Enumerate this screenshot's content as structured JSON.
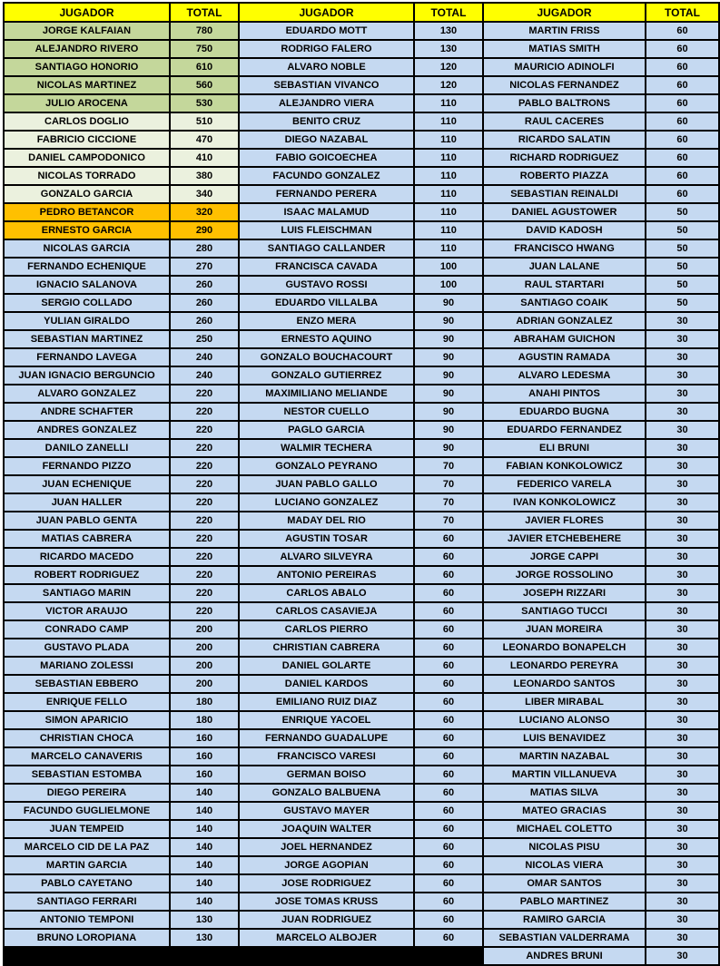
{
  "colors": {
    "header_bg": "#FFFF00",
    "tier_green": "#C4D79B",
    "tier_pale": "#EBF1DE",
    "tier_orange": "#FFC000",
    "tier_blue": "#C5D9F1",
    "tier_black": "#000000",
    "border": "#000000",
    "text": "#000000"
  },
  "table": {
    "header": {
      "jugador": "JUGADOR",
      "total": "TOTAL"
    },
    "columns": [
      {
        "players": [
          {
            "name": "JORGE KALFAIAN",
            "total": "780",
            "tier": "green"
          },
          {
            "name": "ALEJANDRO RIVERO",
            "total": "750",
            "tier": "green"
          },
          {
            "name": "SANTIAGO HONORIO",
            "total": "610",
            "tier": "green"
          },
          {
            "name": "NICOLAS MARTINEZ",
            "total": "560",
            "tier": "green"
          },
          {
            "name": "JULIO AROCENA",
            "total": "530",
            "tier": "green"
          },
          {
            "name": "CARLOS DOGLIO",
            "total": "510",
            "tier": "pale"
          },
          {
            "name": "FABRICIO CICCIONE",
            "total": "470",
            "tier": "pale"
          },
          {
            "name": "DANIEL CAMPODONICO",
            "total": "410",
            "tier": "pale"
          },
          {
            "name": "NICOLAS TORRADO",
            "total": "380",
            "tier": "pale"
          },
          {
            "name": "GONZALO GARCIA",
            "total": "340",
            "tier": "pale"
          },
          {
            "name": "PEDRO BETANCOR",
            "total": "320",
            "tier": "orange"
          },
          {
            "name": "ERNESTO GARCIA",
            "total": "290",
            "tier": "orange"
          },
          {
            "name": "NICOLAS GARCIA",
            "total": "280",
            "tier": "blue"
          },
          {
            "name": "FERNANDO ECHENIQUE",
            "total": "270",
            "tier": "blue"
          },
          {
            "name": "IGNACIO SALANOVA",
            "total": "260",
            "tier": "blue"
          },
          {
            "name": "SERGIO COLLADO",
            "total": "260",
            "tier": "blue"
          },
          {
            "name": "YULIAN GIRALDO",
            "total": "260",
            "tier": "blue"
          },
          {
            "name": "SEBASTIAN MARTINEZ",
            "total": "250",
            "tier": "blue"
          },
          {
            "name": "FERNANDO LAVEGA",
            "total": "240",
            "tier": "blue"
          },
          {
            "name": "JUAN IGNACIO BERGUNCIO",
            "total": "240",
            "tier": "blue"
          },
          {
            "name": "ALVARO GONZALEZ",
            "total": "220",
            "tier": "blue"
          },
          {
            "name": "ANDRE SCHAFTER",
            "total": "220",
            "tier": "blue"
          },
          {
            "name": "ANDRES GONZALEZ",
            "total": "220",
            "tier": "blue"
          },
          {
            "name": "DANILO ZANELLI",
            "total": "220",
            "tier": "blue"
          },
          {
            "name": "FERNANDO PIZZO",
            "total": "220",
            "tier": "blue"
          },
          {
            "name": "JUAN ECHENIQUE",
            "total": "220",
            "tier": "blue"
          },
          {
            "name": "JUAN HALLER",
            "total": "220",
            "tier": "blue"
          },
          {
            "name": "JUAN PABLO GENTA",
            "total": "220",
            "tier": "blue"
          },
          {
            "name": "MATIAS CABRERA",
            "total": "220",
            "tier": "blue"
          },
          {
            "name": "RICARDO MACEDO",
            "total": "220",
            "tier": "blue"
          },
          {
            "name": "ROBERT RODRIGUEZ",
            "total": "220",
            "tier": "blue"
          },
          {
            "name": "SANTIAGO MARIN",
            "total": "220",
            "tier": "blue"
          },
          {
            "name": "VICTOR ARAUJO",
            "total": "220",
            "tier": "blue"
          },
          {
            "name": "CONRADO CAMP",
            "total": "200",
            "tier": "blue"
          },
          {
            "name": "GUSTAVO PLADA",
            "total": "200",
            "tier": "blue"
          },
          {
            "name": "MARIANO ZOLESSI",
            "total": "200",
            "tier": "blue"
          },
          {
            "name": "SEBASTIAN EBBERO",
            "total": "200",
            "tier": "blue"
          },
          {
            "name": "ENRIQUE FELLO",
            "total": "180",
            "tier": "blue"
          },
          {
            "name": "SIMON APARICIO",
            "total": "180",
            "tier": "blue"
          },
          {
            "name": "CHRISTIAN CHOCA",
            "total": "160",
            "tier": "blue"
          },
          {
            "name": "MARCELO CANAVERIS",
            "total": "160",
            "tier": "blue"
          },
          {
            "name": "SEBASTIAN ESTOMBA",
            "total": "160",
            "tier": "blue"
          },
          {
            "name": "DIEGO PEREIRA",
            "total": "140",
            "tier": "blue"
          },
          {
            "name": "FACUNDO GUGLIELMONE",
            "total": "140",
            "tier": "blue"
          },
          {
            "name": "JUAN TEMPEID",
            "total": "140",
            "tier": "blue"
          },
          {
            "name": "MARCELO CID DE LA PAZ",
            "total": "140",
            "tier": "blue"
          },
          {
            "name": "MARTIN GARCIA",
            "total": "140",
            "tier": "blue"
          },
          {
            "name": "PABLO CAYETANO",
            "total": "140",
            "tier": "blue"
          },
          {
            "name": "SANTIAGO FERRARI",
            "total": "140",
            "tier": "blue"
          },
          {
            "name": "ANTONIO TEMPONI",
            "total": "130",
            "tier": "blue"
          },
          {
            "name": "BRUNO LOROPIANA",
            "total": "130",
            "tier": "blue"
          },
          {
            "name": "",
            "total": "",
            "tier": "black"
          }
        ]
      },
      {
        "players": [
          {
            "name": "EDUARDO MOTT",
            "total": "130",
            "tier": "blue"
          },
          {
            "name": "RODRIGO FALERO",
            "total": "130",
            "tier": "blue"
          },
          {
            "name": "ALVARO NOBLE",
            "total": "120",
            "tier": "blue"
          },
          {
            "name": "SEBASTIAN VIVANCO",
            "total": "120",
            "tier": "blue"
          },
          {
            "name": "ALEJANDRO VIERA",
            "total": "110",
            "tier": "blue"
          },
          {
            "name": "BENITO CRUZ",
            "total": "110",
            "tier": "blue"
          },
          {
            "name": "DIEGO NAZABAL",
            "total": "110",
            "tier": "blue"
          },
          {
            "name": "FABIO GOICOECHEA",
            "total": "110",
            "tier": "blue"
          },
          {
            "name": "FACUNDO GONZALEZ",
            "total": "110",
            "tier": "blue"
          },
          {
            "name": "FERNANDO PERERA",
            "total": "110",
            "tier": "blue"
          },
          {
            "name": "ISAAC MALAMUD",
            "total": "110",
            "tier": "blue"
          },
          {
            "name": "LUIS FLEISCHMAN",
            "total": "110",
            "tier": "blue"
          },
          {
            "name": "SANTIAGO CALLANDER",
            "total": "110",
            "tier": "blue"
          },
          {
            "name": "FRANCISCA CAVADA",
            "total": "100",
            "tier": "blue"
          },
          {
            "name": "GUSTAVO ROSSI",
            "total": "100",
            "tier": "blue"
          },
          {
            "name": "EDUARDO VILLALBA",
            "total": "90",
            "tier": "blue"
          },
          {
            "name": "ENZO MERA",
            "total": "90",
            "tier": "blue"
          },
          {
            "name": "ERNESTO AQUINO",
            "total": "90",
            "tier": "blue"
          },
          {
            "name": "GONZALO BOUCHACOURT",
            "total": "90",
            "tier": "blue"
          },
          {
            "name": "GONZALO GUTIERREZ",
            "total": "90",
            "tier": "blue"
          },
          {
            "name": "MAXIMILIANO MELIANDE",
            "total": "90",
            "tier": "blue"
          },
          {
            "name": "NESTOR CUELLO",
            "total": "90",
            "tier": "blue"
          },
          {
            "name": "PAGLO GARCIA",
            "total": "90",
            "tier": "blue"
          },
          {
            "name": "WALMIR TECHERA",
            "total": "90",
            "tier": "blue"
          },
          {
            "name": "GONZALO PEYRANO",
            "total": "70",
            "tier": "blue"
          },
          {
            "name": "JUAN PABLO GALLO",
            "total": "70",
            "tier": "blue"
          },
          {
            "name": "LUCIANO GONZALEZ",
            "total": "70",
            "tier": "blue"
          },
          {
            "name": "MADAY DEL RIO",
            "total": "70",
            "tier": "blue"
          },
          {
            "name": "AGUSTIN TOSAR",
            "total": "60",
            "tier": "blue"
          },
          {
            "name": "ALVARO SILVEYRA",
            "total": "60",
            "tier": "blue"
          },
          {
            "name": "ANTONIO PEREIRAS",
            "total": "60",
            "tier": "blue"
          },
          {
            "name": "CARLOS ABALO",
            "total": "60",
            "tier": "blue"
          },
          {
            "name": "CARLOS CASAVIEJA",
            "total": "60",
            "tier": "blue"
          },
          {
            "name": "CARLOS PIERRO",
            "total": "60",
            "tier": "blue"
          },
          {
            "name": "CHRISTIAN CABRERA",
            "total": "60",
            "tier": "blue"
          },
          {
            "name": "DANIEL GOLARTE",
            "total": "60",
            "tier": "blue"
          },
          {
            "name": "DANIEL KARDOS",
            "total": "60",
            "tier": "blue"
          },
          {
            "name": "EMILIANO RUIZ DIAZ",
            "total": "60",
            "tier": "blue"
          },
          {
            "name": "ENRIQUE YACOEL",
            "total": "60",
            "tier": "blue"
          },
          {
            "name": "FERNANDO GUADALUPE",
            "total": "60",
            "tier": "blue"
          },
          {
            "name": "FRANCISCO VARESI",
            "total": "60",
            "tier": "blue"
          },
          {
            "name": "GERMAN BOISO",
            "total": "60",
            "tier": "blue"
          },
          {
            "name": "GONZALO BALBUENA",
            "total": "60",
            "tier": "blue"
          },
          {
            "name": "GUSTAVO MAYER",
            "total": "60",
            "tier": "blue"
          },
          {
            "name": "JOAQUIN WALTER",
            "total": "60",
            "tier": "blue"
          },
          {
            "name": "JOEL HERNANDEZ",
            "total": "60",
            "tier": "blue"
          },
          {
            "name": "JORGE AGOPIAN",
            "total": "60",
            "tier": "blue"
          },
          {
            "name": "JOSE RODRIGUEZ",
            "total": "60",
            "tier": "blue"
          },
          {
            "name": "JOSE TOMAS KRUSS",
            "total": "60",
            "tier": "blue"
          },
          {
            "name": "JUAN RODRIGUEZ",
            "total": "60",
            "tier": "blue"
          },
          {
            "name": "MARCELO ALBOJER",
            "total": "60",
            "tier": "blue"
          },
          {
            "name": "",
            "total": "",
            "tier": "black"
          }
        ]
      },
      {
        "players": [
          {
            "name": "MARTIN FRISS",
            "total": "60",
            "tier": "blue"
          },
          {
            "name": "MATIAS SMITH",
            "total": "60",
            "tier": "blue"
          },
          {
            "name": "MAURICIO ADINOLFI",
            "total": "60",
            "tier": "blue"
          },
          {
            "name": "NICOLAS FERNANDEZ",
            "total": "60",
            "tier": "blue"
          },
          {
            "name": "PABLO BALTRONS",
            "total": "60",
            "tier": "blue"
          },
          {
            "name": "RAUL CACERES",
            "total": "60",
            "tier": "blue"
          },
          {
            "name": "RICARDO SALATIN",
            "total": "60",
            "tier": "blue"
          },
          {
            "name": "RICHARD RODRIGUEZ",
            "total": "60",
            "tier": "blue"
          },
          {
            "name": "ROBERTO PIAZZA",
            "total": "60",
            "tier": "blue"
          },
          {
            "name": "SEBASTIAN REINALDI",
            "total": "60",
            "tier": "blue"
          },
          {
            "name": "DANIEL AGUSTOWER",
            "total": "50",
            "tier": "blue"
          },
          {
            "name": "DAVID KADOSH",
            "total": "50",
            "tier": "blue"
          },
          {
            "name": "FRANCISCO HWANG",
            "total": "50",
            "tier": "blue"
          },
          {
            "name": "JUAN LALANE",
            "total": "50",
            "tier": "blue"
          },
          {
            "name": "RAUL STARTARI",
            "total": "50",
            "tier": "blue"
          },
          {
            "name": "SANTIAGO COAIK",
            "total": "50",
            "tier": "blue"
          },
          {
            "name": "ADRIAN GONZALEZ",
            "total": "30",
            "tier": "blue"
          },
          {
            "name": "ABRAHAM GUICHON",
            "total": "30",
            "tier": "blue"
          },
          {
            "name": "AGUSTIN RAMADA",
            "total": "30",
            "tier": "blue"
          },
          {
            "name": "ALVARO LEDESMA",
            "total": "30",
            "tier": "blue"
          },
          {
            "name": "ANAHI PINTOS",
            "total": "30",
            "tier": "blue"
          },
          {
            "name": "EDUARDO BUGNA",
            "total": "30",
            "tier": "blue"
          },
          {
            "name": "EDUARDO FERNANDEZ",
            "total": "30",
            "tier": "blue"
          },
          {
            "name": "ELI BRUNI",
            "total": "30",
            "tier": "blue"
          },
          {
            "name": "FABIAN KONKOLOWICZ",
            "total": "30",
            "tier": "blue"
          },
          {
            "name": "FEDERICO VARELA",
            "total": "30",
            "tier": "blue"
          },
          {
            "name": "IVAN KONKOLOWICZ",
            "total": "30",
            "tier": "blue"
          },
          {
            "name": "JAVIER FLORES",
            "total": "30",
            "tier": "blue"
          },
          {
            "name": "JAVIER ETCHEBEHERE",
            "total": "30",
            "tier": "blue"
          },
          {
            "name": "JORGE CAPPI",
            "total": "30",
            "tier": "blue"
          },
          {
            "name": "JORGE ROSSOLINO",
            "total": "30",
            "tier": "blue"
          },
          {
            "name": "JOSEPH RIZZARI",
            "total": "30",
            "tier": "blue"
          },
          {
            "name": "SANTIAGO TUCCI",
            "total": "30",
            "tier": "blue"
          },
          {
            "name": "JUAN MOREIRA",
            "total": "30",
            "tier": "blue"
          },
          {
            "name": "LEONARDO BONAPELCH",
            "total": "30",
            "tier": "blue"
          },
          {
            "name": "LEONARDO PEREYRA",
            "total": "30",
            "tier": "blue"
          },
          {
            "name": "LEONARDO SANTOS",
            "total": "30",
            "tier": "blue"
          },
          {
            "name": "LIBER MIRABAL",
            "total": "30",
            "tier": "blue"
          },
          {
            "name": "LUCIANO ALONSO",
            "total": "30",
            "tier": "blue"
          },
          {
            "name": "LUIS BENAVIDEZ",
            "total": "30",
            "tier": "blue"
          },
          {
            "name": "MARTIN NAZABAL",
            "total": "30",
            "tier": "blue"
          },
          {
            "name": "MARTIN VILLANUEVA",
            "total": "30",
            "tier": "blue"
          },
          {
            "name": "MATIAS SILVA",
            "total": "30",
            "tier": "blue"
          },
          {
            "name": "MATEO GRACIAS",
            "total": "30",
            "tier": "blue"
          },
          {
            "name": "MICHAEL COLETTO",
            "total": "30",
            "tier": "blue"
          },
          {
            "name": "NICOLAS PISU",
            "total": "30",
            "tier": "blue"
          },
          {
            "name": "NICOLAS VIERA",
            "total": "30",
            "tier": "blue"
          },
          {
            "name": "OMAR SANTOS",
            "total": "30",
            "tier": "blue"
          },
          {
            "name": "PABLO MARTINEZ",
            "total": "30",
            "tier": "blue"
          },
          {
            "name": "RAMIRO GARCIA",
            "total": "30",
            "tier": "blue"
          },
          {
            "name": "SEBASTIAN VALDERRAMA",
            "total": "30",
            "tier": "blue"
          },
          {
            "name": "ANDRES BRUNI",
            "total": "30",
            "tier": "blue"
          }
        ]
      }
    ]
  }
}
